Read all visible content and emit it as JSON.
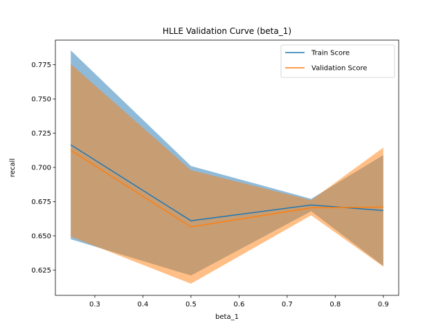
{
  "chart_data": {
    "type": "line",
    "title": "HLLE Validation Curve (beta_1)",
    "xlabel": "beta_1",
    "ylabel": "recall",
    "x": [
      0.25,
      0.5,
      0.75,
      0.9
    ],
    "xlim": [
      0.218,
      0.932
    ],
    "ylim": [
      0.6065,
      0.793
    ],
    "xticks": [
      0.3,
      0.4,
      0.5,
      0.6,
      0.7,
      0.8,
      0.9
    ],
    "xtick_labels": [
      "0.3",
      "0.4",
      "0.5",
      "0.6",
      "0.7",
      "0.8",
      "0.9"
    ],
    "yticks": [
      0.625,
      0.65,
      0.675,
      0.7,
      0.725,
      0.75,
      0.775
    ],
    "ytick_labels": [
      "0.625",
      "0.650",
      "0.675",
      "0.700",
      "0.725",
      "0.750",
      "0.775"
    ],
    "grid": false,
    "legend_position": "top-right",
    "series": [
      {
        "name": "Train Score",
        "color": "#1f77b4",
        "values": [
          0.7165,
          0.661,
          0.6725,
          0.6685
        ],
        "band_upper": [
          0.7855,
          0.701,
          0.677,
          0.709
        ],
        "band_lower": [
          0.6475,
          0.621,
          0.668,
          0.628
        ]
      },
      {
        "name": "Validation Score",
        "color": "#ff7f0e",
        "values": [
          0.7125,
          0.6565,
          0.6705,
          0.671
        ],
        "band_upper": [
          0.7755,
          0.698,
          0.676,
          0.7145
        ],
        "band_lower": [
          0.6495,
          0.615,
          0.665,
          0.6275
        ]
      }
    ]
  }
}
